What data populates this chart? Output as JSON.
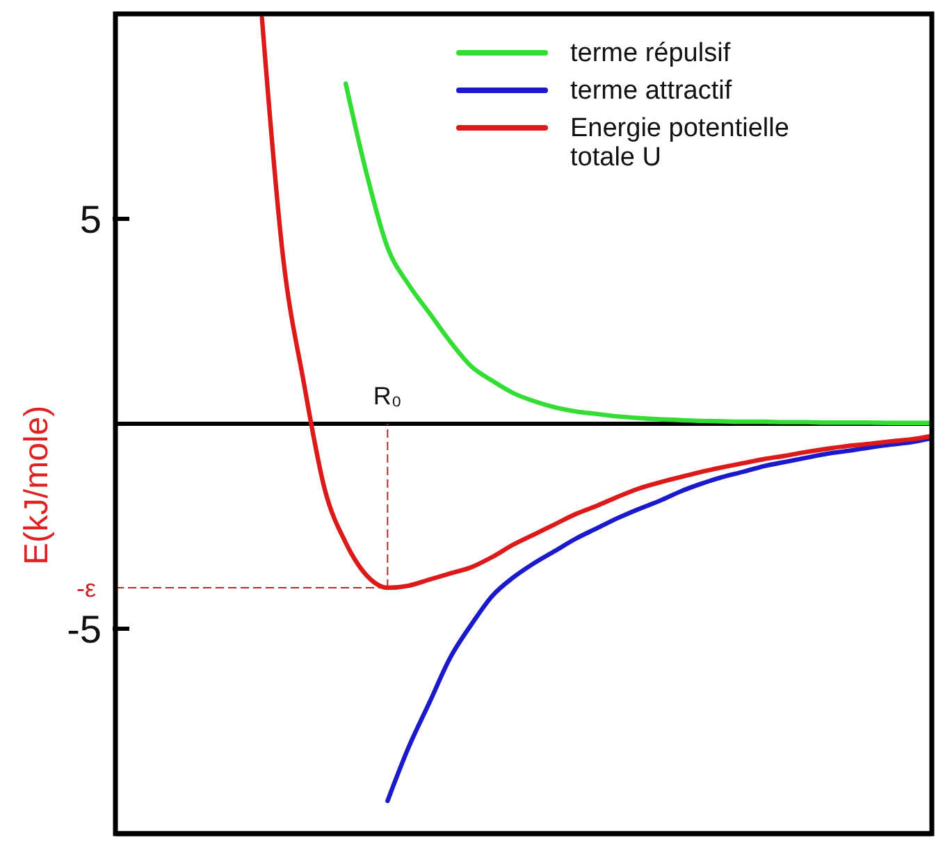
{
  "chart_data": {
    "type": "line",
    "ylabel": "E(kJ/mole)",
    "categories": [
      null,
      null,
      null,
      null,
      null,
      null,
      null,
      null,
      null,
      null,
      null,
      null,
      null,
      null,
      null,
      null,
      null,
      null,
      null,
      null,
      null,
      null,
      null,
      null,
      null,
      null,
      null,
      null,
      null,
      null,
      null,
      null,
      null,
      null,
      null,
      null,
      null,
      null,
      null,
      null
    ],
    "series": [
      {
        "name": "terme répulsif",
        "color": "#33dd33",
        "values": [
          null,
          null,
          null,
          null,
          null,
          null,
          null,
          null,
          null,
          null,
          null,
          8.3,
          6.1,
          4.3,
          3.4,
          2.7,
          2.0,
          1.4,
          1.05,
          0.75,
          0.55,
          0.4,
          0.3,
          0.24,
          0.18,
          0.14,
          0.11,
          0.09,
          0.07,
          0.06,
          0.05,
          0.05,
          0.04,
          0.04,
          0.03,
          0.03,
          0.03,
          0.02,
          0.02,
          0.02
        ]
      },
      {
        "name": "terme attractif",
        "color": "#1a1acc",
        "values": [
          null,
          null,
          null,
          null,
          null,
          null,
          null,
          null,
          null,
          null,
          null,
          null,
          null,
          -9.2,
          -7.9,
          -6.8,
          -5.7,
          -4.9,
          -4.2,
          -3.75,
          -3.4,
          -3.1,
          -2.8,
          -2.55,
          -2.3,
          -2.08,
          -1.88,
          -1.65,
          -1.46,
          -1.3,
          -1.17,
          -1.03,
          -0.93,
          -0.83,
          -0.73,
          -0.66,
          -0.58,
          -0.51,
          -0.45,
          -0.35
        ]
      },
      {
        "name": "Energie potentielle totale U",
        "color": "#dd1a1a",
        "values": [
          null,
          null,
          null,
          null,
          null,
          null,
          null,
          9.9,
          4.1,
          1.0,
          -1.6,
          -2.9,
          -3.7,
          -4.0,
          -3.95,
          -3.8,
          -3.65,
          -3.5,
          -3.25,
          -2.95,
          -2.7,
          -2.45,
          -2.2,
          -2.0,
          -1.78,
          -1.58,
          -1.43,
          -1.3,
          -1.17,
          -1.06,
          -0.96,
          -0.86,
          -0.78,
          -0.69,
          -0.61,
          -0.54,
          -0.49,
          -0.43,
          -0.38,
          -0.3
        ]
      }
    ],
    "ylim": [
      -10,
      10
    ],
    "yticks": [
      5,
      -5
    ],
    "ref_lines": [
      {
        "axis": "y",
        "value": 0,
        "color": "#000000",
        "line_style": "solid"
      },
      {
        "axis": "y",
        "value": -4,
        "label": "-ε",
        "color": "#cc2222",
        "line_style": "dashed"
      }
    ],
    "annotations": [
      "R₀"
    ],
    "legend": "top right",
    "grid": false,
    "marker": "none",
    "line_style": "solid",
    "tick_labels": "y"
  }
}
